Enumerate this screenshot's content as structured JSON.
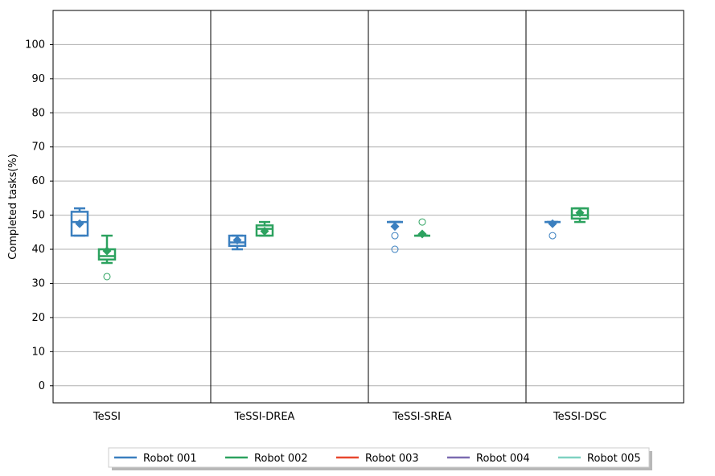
{
  "chart_data": {
    "type": "box",
    "ylabel": "Completed tasks(%)",
    "xlabel": "",
    "title": "",
    "ylim": [
      -5,
      110
    ],
    "yticks": [
      0,
      10,
      20,
      30,
      40,
      50,
      60,
      70,
      80,
      90,
      100
    ],
    "grid": "horizontal",
    "legend_position": "bottom-center",
    "categories": [
      "TeSSI",
      "TeSSI-DREA",
      "TeSSI-SREA",
      "TeSSI-DSC"
    ],
    "series": [
      {
        "name": "Robot 001",
        "color": "#3a7fbf",
        "boxes": [
          {
            "whisker_low": 44,
            "q1": 44,
            "median": 48,
            "q3": 51,
            "whisker_high": 52,
            "mean": 47.5,
            "outliers": []
          },
          {
            "whisker_low": 40,
            "q1": 41,
            "median": 42,
            "q3": 44,
            "whisker_high": 44,
            "mean": 42.7,
            "outliers": []
          },
          {
            "whisker_low": 48,
            "q1": 48,
            "median": 48,
            "q3": 48,
            "whisker_high": 48,
            "mean": 46.7,
            "outliers": [
              44,
              40
            ]
          },
          {
            "whisker_low": 48,
            "q1": 48,
            "median": 48,
            "q3": 48,
            "whisker_high": 48,
            "mean": 47.5,
            "outliers": [
              44
            ]
          }
        ]
      },
      {
        "name": "Robot 002",
        "color": "#2ca25f",
        "boxes": [
          {
            "whisker_low": 36,
            "q1": 37,
            "median": 38,
            "q3": 40,
            "whisker_high": 44,
            "mean": 39.5,
            "outliers": [
              32
            ]
          },
          {
            "whisker_low": 44,
            "q1": 44,
            "median": 46,
            "q3": 47,
            "whisker_high": 48,
            "mean": 45.3,
            "outliers": []
          },
          {
            "whisker_low": 44,
            "q1": 44,
            "median": 44,
            "q3": 44,
            "whisker_high": 44,
            "mean": 44.5,
            "outliers": [
              48
            ]
          },
          {
            "whisker_low": 48,
            "q1": 49,
            "median": 50,
            "q3": 52,
            "whisker_high": 52,
            "mean": 50.7,
            "outliers": []
          }
        ]
      },
      {
        "name": "Robot 003",
        "color": "#e8472e",
        "boxes": []
      },
      {
        "name": "Robot 004",
        "color": "#7b6bb0",
        "boxes": []
      },
      {
        "name": "Robot 005",
        "color": "#7fd1c1",
        "boxes": []
      }
    ]
  }
}
